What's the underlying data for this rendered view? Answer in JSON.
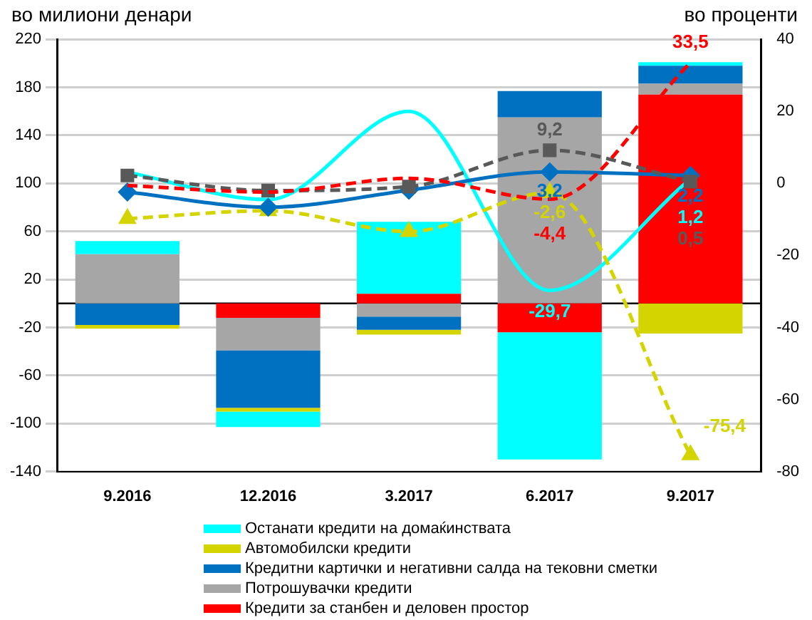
{
  "chart_data": {
    "type": "bar",
    "ylabel": "во милиони денари",
    "y2label": "во проценти",
    "categories": [
      "9.2016",
      "12.2016",
      "3.2017",
      "6.2017",
      "9.2017"
    ],
    "stacked": true,
    "legend": "bottom",
    "grid": "y",
    "ylim": [
      -140,
      220
    ],
    "yticks": [
      -140,
      -100,
      -60,
      -20,
      20,
      60,
      100,
      140,
      180,
      220
    ],
    "y2lim": [
      -80,
      40
    ],
    "y2ticks": [
      -80,
      -60,
      -40,
      -20,
      0,
      20,
      40
    ],
    "series": [
      {
        "name": "Кредити за станбен и деловен простор",
        "color": "#ff0000",
        "values": [
          null,
          -12,
          8,
          -24,
          174
        ]
      },
      {
        "name": "Потрошувачки кредити",
        "color": "#a6a6a6",
        "values": [
          41,
          -27,
          -11,
          155,
          9
        ]
      },
      {
        "name": "Кредитни картички и негативни салда на тековни сметки",
        "color": "#0070c0",
        "values": [
          -18,
          -48,
          -11,
          22,
          15
        ]
      },
      {
        "name": "Автомобилски кредити",
        "color": "#d4d400",
        "values": [
          -3,
          -3,
          -4,
          null,
          -25
        ]
      },
      {
        "name": "Останати кредити на домаќинствата",
        "color": "#00ffff",
        "values": [
          11,
          -13,
          60,
          -106,
          3
        ]
      },
      {
        "type": "line",
        "axis": "y2",
        "color": "#00ffff",
        "marker": "none",
        "line_style": "solid",
        "values": [
          3.1,
          -4.5,
          20,
          -29.7,
          1.2
        ],
        "value_labels": [
          null,
          null,
          null,
          "-29,7",
          "1,2"
        ]
      },
      {
        "type": "line",
        "axis": "y2",
        "color": "#d4d400",
        "marker": "triangle",
        "line_style": "dashed",
        "values": [
          -9.8,
          -7.6,
          -13.4,
          -2.6,
          -75.4
        ],
        "value_labels": [
          null,
          null,
          null,
          "-2,6",
          "-75,4"
        ]
      },
      {
        "type": "line",
        "axis": "y2",
        "color": "#0070c0",
        "marker": "diamond",
        "line_style": "solid",
        "values": [
          -2.4,
          -6.6,
          -1.9,
          3.2,
          2.2
        ],
        "value_labels": [
          null,
          null,
          null,
          "3,2",
          "2,2"
        ]
      },
      {
        "type": "line",
        "axis": "y2",
        "color": "#595959",
        "marker": "square",
        "line_style": "dashed",
        "values": [
          2.2,
          -2.0,
          -0.9,
          9.2,
          0.5
        ],
        "value_labels": [
          null,
          null,
          null,
          "9,2",
          "0,5"
        ]
      },
      {
        "type": "line",
        "axis": "y2",
        "color": "#ff0000",
        "marker": "none",
        "line_style": "dashed",
        "values": [
          -0.6,
          -2.4,
          1.4,
          -4.4,
          33.5
        ],
        "value_labels": [
          null,
          null,
          null,
          "-4,4",
          "33,5"
        ]
      }
    ]
  }
}
